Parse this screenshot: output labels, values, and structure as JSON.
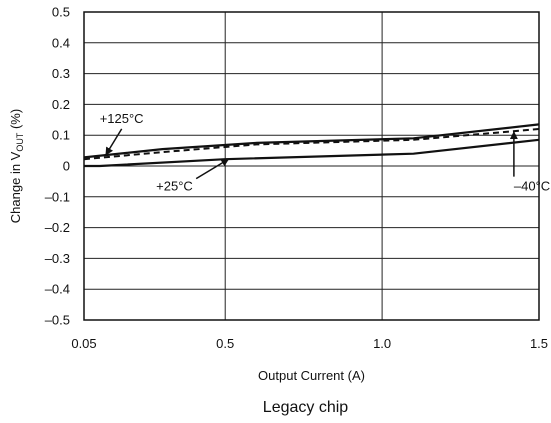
{
  "chart_data": {
    "type": "line",
    "xlabel": "Output Current (A)",
    "ylabel": {
      "prefix": "Change in V",
      "subscript": "OUT",
      "suffix": " (%)"
    },
    "xlim": [
      0.05,
      1.5
    ],
    "ylim": [
      -0.5,
      0.5
    ],
    "x_ticks": [
      {
        "value": 0.05,
        "label": "0.05"
      },
      {
        "value": 0.5,
        "label": "0.5"
      },
      {
        "value": 1.0,
        "label": "1.0"
      },
      {
        "value": 1.5,
        "label": "1.5"
      }
    ],
    "y_ticks": [
      {
        "value": 0.5,
        "label": "0.5"
      },
      {
        "value": 0.4,
        "label": "0.4"
      },
      {
        "value": 0.3,
        "label": "0.3"
      },
      {
        "value": 0.2,
        "label": "0.2"
      },
      {
        "value": 0.1,
        "label": "0.1"
      },
      {
        "value": 0.0,
        "label": "0"
      },
      {
        "value": -0.1,
        "label": "–0.1"
      },
      {
        "value": -0.2,
        "label": "–0.2"
      },
      {
        "value": -0.3,
        "label": "–0.3"
      },
      {
        "value": -0.4,
        "label": "–0.4"
      },
      {
        "value": -0.5,
        "label": "–0.5"
      }
    ],
    "grid": true,
    "series": [
      {
        "name": "+125°C",
        "style": "solid",
        "points": [
          [
            0.05,
            0.028
          ],
          [
            0.3,
            0.055
          ],
          [
            0.6,
            0.075
          ],
          [
            1.1,
            0.09
          ],
          [
            1.5,
            0.135
          ]
        ]
      },
      {
        "name": "+25°C",
        "style": "solid",
        "points": [
          [
            0.05,
            0.0
          ],
          [
            0.1,
            0.0
          ],
          [
            0.5,
            0.022
          ],
          [
            1.1,
            0.04
          ],
          [
            1.5,
            0.085
          ]
        ]
      },
      {
        "name": "–40°C",
        "style": "dashed",
        "points": [
          [
            0.05,
            0.022
          ],
          [
            0.3,
            0.045
          ],
          [
            0.6,
            0.07
          ],
          [
            1.1,
            0.085
          ],
          [
            1.5,
            0.12
          ]
        ]
      }
    ],
    "annotations": [
      {
        "text": "+125°C",
        "text_at": [
          0.1,
          0.14
        ],
        "arrow_to": [
          0.12,
          0.037
        ]
      },
      {
        "text": "+25°C",
        "text_at": [
          0.28,
          -0.08
        ],
        "arrow_to": [
          0.51,
          0.022
        ]
      },
      {
        "text": "–40°C",
        "text_at": [
          1.42,
          -0.08
        ],
        "arrow_to": [
          1.42,
          0.11
        ]
      }
    ]
  },
  "caption": "Legacy chip"
}
